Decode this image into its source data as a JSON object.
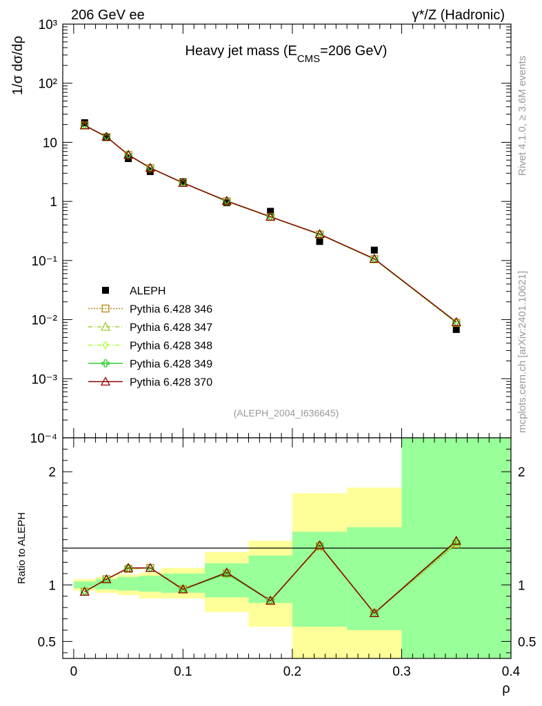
{
  "header": {
    "left": "206 GeV ee",
    "right": "γ*/Z (Hadronic)"
  },
  "side_labels": {
    "top": "Rivet 4.1.0, ≥ 3.6M events",
    "bottom": "mcplots.cern.ch [arXiv:2401.10621]"
  },
  "chart_data": [
    {
      "type": "scatter",
      "panel": "main",
      "title": "Heavy jet mass (E",
      "title_sub": "CMS",
      "title_tail": "=206 GeV)",
      "analysis_label": "(ALEPH_2004_I636645)",
      "ylabel": "1/σ  dσ/dρ",
      "yscale": "log",
      "ylim": [
        0.0001,
        1000
      ],
      "y_tick_labels": [
        "10⁻⁴",
        "10⁻³",
        "10⁻²",
        "10⁻¹",
        "1",
        "10",
        "10²",
        "10³"
      ],
      "xlim": [
        -0.01,
        0.4
      ],
      "x": [
        0.01,
        0.03,
        0.05,
        0.07,
        0.1,
        0.14,
        0.18,
        0.225,
        0.275,
        0.35
      ],
      "series": [
        {
          "name": "ALEPH",
          "marker": "filled-square",
          "color": "#000000",
          "values": [
            21.5,
            12.0,
            5.3,
            3.2,
            2.15,
            0.95,
            0.68,
            0.21,
            0.15,
            0.0068
          ]
        },
        {
          "name": "Pythia 6.428 346",
          "marker": "open-square",
          "color": "#b8860b",
          "dash": "dotted",
          "values": [
            19.3,
            12.3,
            6.1,
            3.65,
            2.05,
            1.0,
            0.545,
            0.275,
            0.105,
            0.0088
          ]
        },
        {
          "name": "Pythia 6.428 347",
          "marker": "open-triangle",
          "color": "#9acd32",
          "dash": "dashdot",
          "values": [
            19.2,
            12.4,
            6.15,
            3.7,
            2.06,
            1.02,
            0.55,
            0.28,
            0.106,
            0.009
          ]
        },
        {
          "name": "Pythia 6.428 348",
          "marker": "open-diamond",
          "color": "#adff2f",
          "dash": "dashdot",
          "values": [
            19.3,
            12.3,
            6.1,
            3.68,
            2.05,
            1.01,
            0.548,
            0.277,
            0.105,
            0.0089
          ]
        },
        {
          "name": "Pythia 6.428 349",
          "marker": "open-cross",
          "color": "#32cd32",
          "dash": "solid",
          "values": [
            19.3,
            12.4,
            6.12,
            3.69,
            2.06,
            1.01,
            0.55,
            0.278,
            0.106,
            0.009
          ]
        },
        {
          "name": "Pythia 6.428 370",
          "marker": "open-triangle",
          "color": "#8b0000",
          "dash": "solid",
          "values": [
            19.4,
            12.4,
            6.15,
            3.7,
            2.06,
            1.02,
            0.55,
            0.28,
            0.107,
            0.0091
          ]
        }
      ]
    },
    {
      "type": "line",
      "panel": "ratio",
      "ylabel": "Ratio to ALEPH",
      "xlabel": "ρ",
      "ylim": [
        0.35,
        2.3
      ],
      "xlim": [
        -0.01,
        0.4
      ],
      "y_ticks": [
        0.5,
        1,
        2
      ],
      "y_tick_labels": [
        "0.5",
        "1",
        "2"
      ],
      "x_ticks": [
        0,
        0.1,
        0.2,
        0.3,
        0.4
      ],
      "x_tick_labels": [
        "0",
        "0.1",
        "0.2",
        "0.3",
        "0.4"
      ],
      "bins": [
        [
          0.0,
          0.02
        ],
        [
          0.02,
          0.04
        ],
        [
          0.04,
          0.06
        ],
        [
          0.06,
          0.08
        ],
        [
          0.08,
          0.12
        ],
        [
          0.12,
          0.16
        ],
        [
          0.16,
          0.2
        ],
        [
          0.2,
          0.25
        ],
        [
          0.25,
          0.3
        ],
        [
          0.3,
          0.4
        ]
      ],
      "band_outer": [
        [
          0.95,
          1.05
        ],
        [
          0.93,
          1.07
        ],
        [
          0.91,
          1.09
        ],
        [
          0.88,
          1.11
        ],
        [
          0.88,
          1.15
        ],
        [
          0.76,
          1.29
        ],
        [
          0.63,
          1.39
        ],
        [
          0.3,
          1.81
        ],
        [
          0.3,
          1.86
        ],
        [
          0.3,
          2.3
        ]
      ],
      "band_inner": [
        [
          0.97,
          1.03
        ],
        [
          0.96,
          1.05
        ],
        [
          0.95,
          1.07
        ],
        [
          0.94,
          1.08
        ],
        [
          0.93,
          1.1
        ],
        [
          0.89,
          1.19
        ],
        [
          0.84,
          1.26
        ],
        [
          0.63,
          1.47
        ],
        [
          0.6,
          1.51
        ],
        [
          0.3,
          2.3
        ]
      ],
      "x": [
        0.01,
        0.03,
        0.05,
        0.07,
        0.1,
        0.14,
        0.18,
        0.225,
        0.275,
        0.35
      ],
      "series": [
        {
          "name": "Pythia 6.428 346",
          "color": "#b8860b",
          "values": [
            0.94,
            1.05,
            1.14,
            1.15,
            0.96,
            1.1,
            0.86,
            1.34,
            0.75,
            1.36
          ]
        },
        {
          "name": "Pythia 6.428 347",
          "color": "#9acd32",
          "values": [
            0.94,
            1.05,
            1.15,
            1.15,
            0.97,
            1.1,
            0.86,
            1.35,
            0.75,
            1.38
          ]
        },
        {
          "name": "Pythia 6.428 348",
          "color": "#adff2f",
          "values": [
            0.94,
            1.05,
            1.14,
            1.15,
            0.96,
            1.1,
            0.86,
            1.34,
            0.75,
            1.37
          ]
        },
        {
          "name": "Pythia 6.428 349",
          "color": "#32cd32",
          "values": [
            0.94,
            1.05,
            1.15,
            1.15,
            0.96,
            1.1,
            0.86,
            1.35,
            0.75,
            1.38
          ]
        },
        {
          "name": "Pythia 6.428 370",
          "color": "#8b0000",
          "values": [
            0.94,
            1.05,
            1.15,
            1.15,
            0.96,
            1.11,
            0.86,
            1.35,
            0.75,
            1.39
          ]
        }
      ]
    }
  ]
}
